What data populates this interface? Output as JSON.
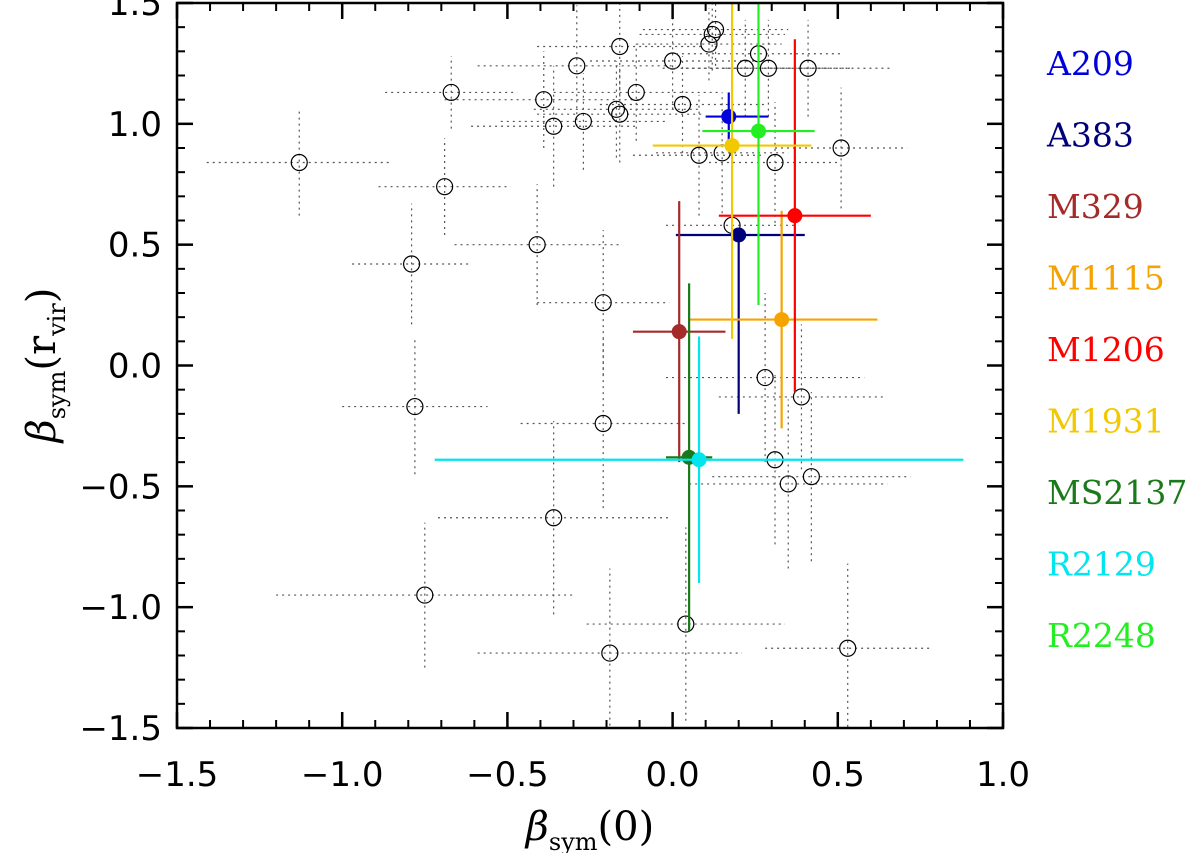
{
  "chart_data": {
    "type": "scatter",
    "xlabel": {
      "symbol": "β",
      "sub": "sym",
      "arg": "(0)"
    },
    "ylabel": {
      "symbol": "β",
      "sub": "sym",
      "arg_open": "(r",
      "arg_sub": "vir",
      "arg_close": ")"
    },
    "xlim": [
      -1.5,
      1.0
    ],
    "ylim": [
      -1.5,
      1.5
    ],
    "x_ticks": [
      -1.5,
      -1.0,
      -0.5,
      0.0,
      0.5,
      1.0
    ],
    "x_tick_labels": [
      "−1.5",
      "−1.0",
      "−0.5",
      "0.0",
      "0.5",
      "1.0"
    ],
    "y_ticks": [
      -1.5,
      -1.0,
      -0.5,
      0.0,
      0.5,
      1.0,
      1.5
    ],
    "y_tick_labels": [
      "−1.5",
      "−1.0",
      "−0.5",
      "0.0",
      "0.5",
      "1.0",
      "1.5"
    ],
    "grid": false,
    "legend_position": "right",
    "background_points": [
      {
        "x": -1.13,
        "y": 0.84,
        "xerr": 0.28,
        "yerr": 0.22
      },
      {
        "x": -0.79,
        "y": 0.42,
        "xerr": 0.18,
        "yerr": 0.25
      },
      {
        "x": -0.78,
        "y": -0.17,
        "xerr": 0.22,
        "yerr": 0.28
      },
      {
        "x": -0.75,
        "y": -0.95,
        "xerr": 0.45,
        "yerr": 0.3
      },
      {
        "x": -0.69,
        "y": 0.74,
        "xerr": 0.2,
        "yerr": 0.2
      },
      {
        "x": -0.67,
        "y": 1.13,
        "xerr": 0.2,
        "yerr": 0.15
      },
      {
        "x": -0.41,
        "y": 0.5,
        "xerr": 0.25,
        "yerr": 0.25
      },
      {
        "x": -0.39,
        "y": 1.1,
        "xerr": 0.3,
        "yerr": 0.2
      },
      {
        "x": -0.36,
        "y": 0.99,
        "xerr": 0.25,
        "yerr": 0.25
      },
      {
        "x": -0.36,
        "y": -0.63,
        "xerr": 0.35,
        "yerr": 0.4
      },
      {
        "x": -0.29,
        "y": 1.24,
        "xerr": 0.3,
        "yerr": 0.25
      },
      {
        "x": -0.27,
        "y": 1.01,
        "xerr": 0.25,
        "yerr": 0.2
      },
      {
        "x": -0.21,
        "y": 0.26,
        "xerr": 0.2,
        "yerr": 0.3
      },
      {
        "x": -0.21,
        "y": -0.24,
        "xerr": 0.25,
        "yerr": 0.35
      },
      {
        "x": -0.19,
        "y": -1.19,
        "xerr": 0.4,
        "yerr": 0.35
      },
      {
        "x": -0.17,
        "y": 1.06,
        "xerr": 0.25,
        "yerr": 0.2
      },
      {
        "x": -0.16,
        "y": 1.04,
        "xerr": 0.25,
        "yerr": 0.2
      },
      {
        "x": -0.16,
        "y": 1.32,
        "xerr": 0.25,
        "yerr": 0.2
      },
      {
        "x": -0.11,
        "y": 1.13,
        "xerr": 0.25,
        "yerr": 0.2
      },
      {
        "x": 0.0,
        "y": 1.26,
        "xerr": 0.25,
        "yerr": 0.2
      },
      {
        "x": 0.03,
        "y": 1.08,
        "xerr": 0.25,
        "yerr": 0.2
      },
      {
        "x": 0.04,
        "y": -1.07,
        "xerr": 0.3,
        "yerr": 0.4
      },
      {
        "x": 0.08,
        "y": 0.87,
        "xerr": 0.2,
        "yerr": 0.25
      },
      {
        "x": 0.11,
        "y": 1.33,
        "xerr": 0.22,
        "yerr": 0.15
      },
      {
        "x": 0.12,
        "y": 1.37,
        "xerr": 0.22,
        "yerr": 0.15
      },
      {
        "x": 0.13,
        "y": 1.39,
        "xerr": 0.22,
        "yerr": 0.15
      },
      {
        "x": 0.15,
        "y": 0.88,
        "xerr": 0.2,
        "yerr": 0.25
      },
      {
        "x": 0.18,
        "y": 0.58,
        "xerr": 0.2,
        "yerr": 0.3
      },
      {
        "x": 0.22,
        "y": 1.23,
        "xerr": 0.25,
        "yerr": 0.2
      },
      {
        "x": 0.26,
        "y": 1.29,
        "xerr": 0.25,
        "yerr": 0.2
      },
      {
        "x": 0.28,
        "y": -0.05,
        "xerr": 0.3,
        "yerr": 0.35
      },
      {
        "x": 0.29,
        "y": 1.23,
        "xerr": 0.25,
        "yerr": 0.2
      },
      {
        "x": 0.31,
        "y": 0.84,
        "xerr": 0.2,
        "yerr": 0.25
      },
      {
        "x": 0.31,
        "y": -0.39,
        "xerr": 0.25,
        "yerr": 0.35
      },
      {
        "x": 0.35,
        "y": -0.49,
        "xerr": 0.3,
        "yerr": 0.35
      },
      {
        "x": 0.39,
        "y": -0.13,
        "xerr": 0.25,
        "yerr": 0.3
      },
      {
        "x": 0.41,
        "y": 1.23,
        "xerr": 0.25,
        "yerr": 0.2
      },
      {
        "x": 0.42,
        "y": -0.46,
        "xerr": 0.3,
        "yerr": 0.35
      },
      {
        "x": 0.51,
        "y": 0.9,
        "xerr": 0.2,
        "yerr": 0.25
      },
      {
        "x": 0.53,
        "y": -1.17,
        "xerr": 0.25,
        "yerr": 0.35
      }
    ],
    "series": [
      {
        "name": "A209",
        "color": "#0000dd",
        "x": 0.17,
        "y": 1.03,
        "xerr": [
          0.07,
          0.12
        ],
        "yerr": [
          0.1,
          0.1
        ]
      },
      {
        "name": "A383",
        "color": "#00007a",
        "x": 0.2,
        "y": 0.54,
        "xerr": [
          0.19,
          0.2
        ],
        "yerr": [
          0.74,
          0.0
        ]
      },
      {
        "name": "M329",
        "color": "#a52a2a",
        "x": 0.02,
        "y": 0.14,
        "xerr": [
          0.14,
          0.14
        ],
        "yerr": [
          0.54,
          0.54
        ]
      },
      {
        "name": "M1115",
        "color": "#f5a300",
        "x": 0.33,
        "y": 0.19,
        "xerr": [
          0.28,
          0.29
        ],
        "yerr": [
          0.45,
          0.45
        ]
      },
      {
        "name": "M1206",
        "color": "#ff0000",
        "x": 0.37,
        "y": 0.62,
        "xerr": [
          0.23,
          0.23
        ],
        "yerr": [
          0.73,
          0.73
        ]
      },
      {
        "name": "M1931",
        "color": "#f2c800",
        "x": 0.18,
        "y": 0.91,
        "xerr": [
          0.24,
          0.24
        ],
        "yerr": [
          0.8,
          0.8
        ]
      },
      {
        "name": "MS2137",
        "color": "#1a7a1a",
        "x": 0.05,
        "y": -0.38,
        "xerr": [
          0.07,
          0.07
        ],
        "yerr": [
          0.72,
          0.72
        ]
      },
      {
        "name": "R2129",
        "color": "#00e5ee",
        "x": 0.08,
        "y": -0.39,
        "xerr": [
          0.8,
          0.8
        ],
        "yerr": [
          0.51,
          0.51
        ]
      },
      {
        "name": "R2248",
        "color": "#22ee22",
        "x": 0.26,
        "y": 0.97,
        "xerr": [
          0.17,
          0.17
        ],
        "yerr": [
          0.72,
          0.72
        ]
      }
    ]
  }
}
